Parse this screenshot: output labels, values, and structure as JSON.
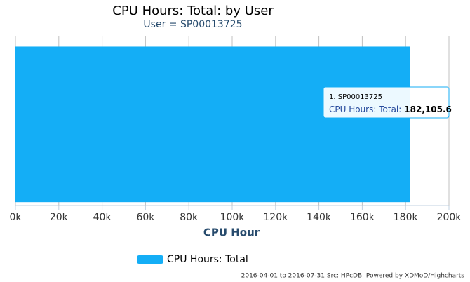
{
  "chart_data": {
    "type": "bar",
    "orientation": "horizontal",
    "title": "CPU Hours: Total: by User",
    "subtitle": "User = SP00013725",
    "xlabel": "CPU Hour",
    "categories": [
      null
    ],
    "series": [
      {
        "name": "CPU Hours: Total",
        "color": "#14aef6",
        "values": [
          182105.6
        ],
        "value_labels": [
          "182,105.6"
        ]
      }
    ],
    "xlim": [
      0,
      200000
    ],
    "xticks": [
      {
        "value": 0,
        "label": "0k"
      },
      {
        "value": 20000,
        "label": "20k"
      },
      {
        "value": 40000,
        "label": "40k"
      },
      {
        "value": 60000,
        "label": "60k"
      },
      {
        "value": 80000,
        "label": "80k"
      },
      {
        "value": 100000,
        "label": "100k"
      },
      {
        "value": 120000,
        "label": "120k"
      },
      {
        "value": 140000,
        "label": "140k"
      },
      {
        "value": 160000,
        "label": "160k"
      },
      {
        "value": 180000,
        "label": "180k"
      },
      {
        "value": 200000,
        "label": "200k"
      }
    ],
    "grid": true,
    "tooltip": {
      "title": "1. SP00013725",
      "label": "CPU Hours: Total:"
    },
    "credits": "2016-04-01 to 2016-07-31 Src: HPcDB. Powered by XDMoD/Highcharts"
  }
}
